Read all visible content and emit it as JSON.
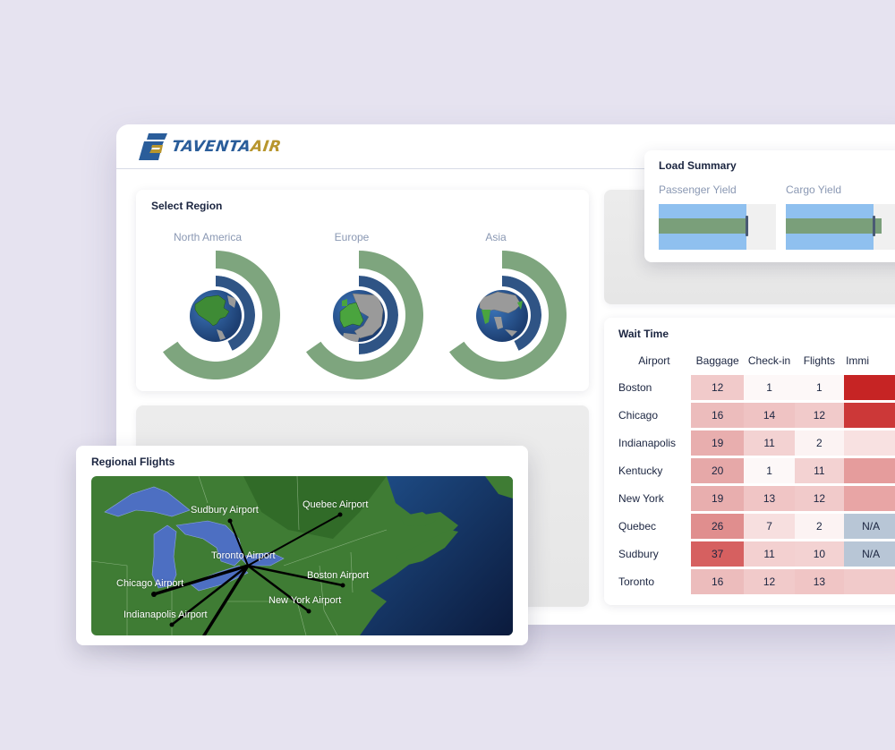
{
  "app": {
    "brand_part1": "TAVENTA",
    "brand_part2": "AIR",
    "colors": {
      "background": "#e6e3f0",
      "brand_blue": "#2a5d9a",
      "brand_gold": "#b8962e",
      "outer_arc": "#7ea57e",
      "inner_arc": "#2f5485",
      "bullet_band": "#8fc0ef",
      "bullet_bar": "#7a9f7a",
      "heat_na": "#b8c6d6"
    }
  },
  "select_region": {
    "title": "Select Region",
    "regions": [
      {
        "label": "North America",
        "outer_deg": 235,
        "inner_deg": 155
      },
      {
        "label": "Europe",
        "outer_deg": 235,
        "inner_deg": 180
      },
      {
        "label": "Asia",
        "outer_deg": 235,
        "inner_deg": 155
      }
    ]
  },
  "load_summary": {
    "title": "Load Summary",
    "items": [
      {
        "label": "Passenger Yield",
        "band_pct": 75,
        "bar_pct": 75,
        "marker_pct": 75
      },
      {
        "label": "Cargo Yield",
        "band_pct": 75,
        "bar_pct": 82,
        "marker_pct": 75
      }
    ]
  },
  "wait_time": {
    "title": "Wait Time",
    "columns": [
      "Airport",
      "Baggage",
      "Check-in",
      "Flights",
      "Immi"
    ],
    "rows": [
      {
        "airport": "Boston",
        "baggage": "12",
        "checkin": "1",
        "flights": "1",
        "immigration": "",
        "colors": [
          "#f1caca",
          "#fdf8f8",
          "#fdf8f8",
          "#c62424"
        ]
      },
      {
        "airport": "Chicago",
        "baggage": "16",
        "checkin": "14",
        "flights": "12",
        "immigration": "",
        "colors": [
          "#ecbcbc",
          "#efc3c3",
          "#f1caca",
          "#cc3838"
        ]
      },
      {
        "airport": "Indianapolis",
        "baggage": "19",
        "checkin": "11",
        "flights": "2",
        "immigration": "",
        "colors": [
          "#e8aeae",
          "#f3d2d2",
          "#fcf3f3",
          "#f8e1e1"
        ]
      },
      {
        "airport": "Kentucky",
        "baggage": "20",
        "checkin": "1",
        "flights": "11",
        "immigration": "",
        "colors": [
          "#e6a8a8",
          "#fdf8f8",
          "#f3d2d2",
          "#e59c9c"
        ]
      },
      {
        "airport": "New York",
        "baggage": "19",
        "checkin": "13",
        "flights": "12",
        "immigration": "",
        "colors": [
          "#e8aeae",
          "#f0c5c5",
          "#f1caca",
          "#e8a5a5"
        ]
      },
      {
        "airport": "Quebec",
        "baggage": "26",
        "checkin": "7",
        "flights": "2",
        "immigration": "N/A",
        "colors": [
          "#e08e8e",
          "#f7dfdf",
          "#fcf3f3",
          "#b8c6d6"
        ]
      },
      {
        "airport": "Sudbury",
        "baggage": "37",
        "checkin": "11",
        "flights": "10",
        "immigration": "N/A",
        "colors": [
          "#d66060",
          "#f3d0d0",
          "#f3d2d2",
          "#b8c6d6"
        ]
      },
      {
        "airport": "Toronto",
        "baggage": "16",
        "checkin": "12",
        "flights": "13",
        "immigration": "",
        "colors": [
          "#ecbcbc",
          "#f1caca",
          "#f0c5c5",
          "#f1caca"
        ]
      }
    ]
  },
  "regional_flights": {
    "title": "Regional Flights",
    "hub": "Toronto Airport",
    "airports": [
      {
        "label": "Sudbury Airport"
      },
      {
        "label": "Quebec Airport"
      },
      {
        "label": "Toronto Airport"
      },
      {
        "label": "Boston Airport"
      },
      {
        "label": "Chicago Airport"
      },
      {
        "label": "New York Airport"
      },
      {
        "label": "Indianapolis Airport"
      }
    ]
  }
}
